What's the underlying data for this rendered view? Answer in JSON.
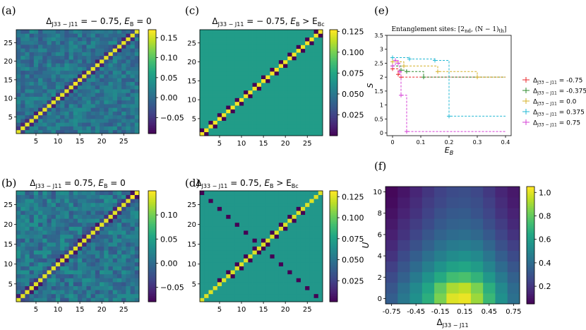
{
  "chart_data": [
    {
      "id": "a",
      "type": "heatmap",
      "panel_label": "(a)",
      "title_main": "Δ",
      "title_sub": "J33 − J11",
      "title_rest": " = − 0.75,  ",
      "title_eb": "E",
      "title_eb_sub": "B",
      "title_cond": " = 0",
      "pattern": "diag-block",
      "matrix_size": 28,
      "diag_value": 0.16,
      "background_value": 0.02,
      "cmin": -0.09,
      "cmax": 0.17,
      "x_ticks": [
        "5",
        "10",
        "15",
        "20",
        "25"
      ],
      "y_ticks": [
        "5",
        "10",
        "15",
        "20",
        "25"
      ],
      "colorbar_ticks": [
        "0.15",
        "0.10",
        "0.05",
        "0.00",
        "−0.05"
      ],
      "colorbar_tick_values": [
        0.15,
        0.1,
        0.05,
        0.0,
        -0.05
      ]
    },
    {
      "id": "b",
      "type": "heatmap",
      "panel_label": "(b)",
      "title_main": "Δ",
      "title_sub": "J33 − J11",
      "title_rest": " = 0.75,  ",
      "title_eb": "E",
      "title_eb_sub": "B",
      "title_cond": " = 0",
      "pattern": "diag-block",
      "matrix_size": 28,
      "diag_value": 0.14,
      "background_value": 0.02,
      "cmin": -0.08,
      "cmax": 0.15,
      "x_ticks": [
        "5",
        "10",
        "15",
        "20",
        "25"
      ],
      "y_ticks": [
        "5",
        "10",
        "15",
        "20",
        "25"
      ],
      "colorbar_ticks": [
        "0.10",
        "0.05",
        "0.00",
        "−0.05"
      ],
      "colorbar_tick_values": [
        0.1,
        0.05,
        0.0,
        -0.05
      ]
    },
    {
      "id": "c",
      "type": "heatmap",
      "panel_label": "(c)",
      "title_main": "Δ",
      "title_sub": "J33 − J11",
      "title_rest": " = − 0.75,  ",
      "title_eb": "E",
      "title_eb_sub": "B",
      "title_cond": " > E",
      "title_cond_sub": "Bc",
      "pattern": "diag-pairs",
      "matrix_size": 28,
      "diag_value": 0.125,
      "background_value": 0.07,
      "pair_value": 0.0,
      "cmin": 0.0,
      "cmax": 0.127,
      "x_ticks": [
        "5",
        "10",
        "15",
        "20",
        "25"
      ],
      "y_ticks": [
        "5",
        "10",
        "15",
        "20",
        "25"
      ],
      "colorbar_ticks": [
        "0.125",
        "0.100",
        "0.075",
        "0.050",
        "0.025"
      ],
      "colorbar_tick_values": [
        0.125,
        0.1,
        0.075,
        0.05,
        0.025
      ]
    },
    {
      "id": "d",
      "type": "heatmap",
      "panel_label": "(d)",
      "title_main": "Δ",
      "title_sub": "J33 − J11",
      "title_rest": " = 0.75,  ",
      "title_eb": "E",
      "title_eb_sub": "B",
      "title_cond": " > E",
      "title_cond_sub": "Bc",
      "pattern": "diag-anti",
      "matrix_size": 28,
      "diag_value": 0.125,
      "background_value": 0.07,
      "pair_value": 0.0,
      "cmin": 0.0,
      "cmax": 0.132,
      "x_ticks": [
        "5",
        "10",
        "15",
        "20",
        "25"
      ],
      "y_ticks": [
        "5",
        "10",
        "15",
        "20",
        "25"
      ],
      "colorbar_ticks": [
        "0.125",
        "0.100",
        "0.075",
        "0.050",
        "0.025"
      ],
      "colorbar_tick_values": [
        0.125,
        0.1,
        0.075,
        0.05,
        0.025
      ]
    },
    {
      "id": "e",
      "type": "line",
      "panel_label": "(e)",
      "title": "Entanglement sites: [2",
      "title_sub1": "nd",
      "title_mid": ", (N − 1)",
      "title_sub2": "th",
      "title_end": "]",
      "xlabel": "E",
      "xlabel_sub": "B",
      "ylabel": "S",
      "xlim": [
        -0.02,
        0.42
      ],
      "ylim": [
        -0.1,
        3.5
      ],
      "x_ticks": [
        "0",
        "0.1",
        "0.2",
        "0.3",
        "0.4"
      ],
      "x_tick_values": [
        0,
        0.1,
        0.2,
        0.3,
        0.4
      ],
      "y_ticks": [
        "0",
        "0.5",
        "1",
        "1.5",
        "2",
        "2.5",
        "3",
        "3.5"
      ],
      "y_tick_values": [
        0,
        0.5,
        1,
        1.5,
        2,
        2.5,
        3,
        3.5
      ],
      "series": [
        {
          "name": "-0.75",
          "color": "#e8262a",
          "x": [
            0,
            0.02,
            0.03,
            0.4
          ],
          "y": [
            2.3,
            2.1,
            2.0,
            2.0
          ]
        },
        {
          "name": "-0.375",
          "color": "#2e8b2e",
          "x": [
            0,
            0.03,
            0.05,
            0.11,
            0.4
          ],
          "y": [
            2.4,
            2.25,
            2.2,
            2.0,
            2.0
          ]
        },
        {
          "name": "0.0",
          "color": "#d4b02a",
          "x": [
            0,
            0.04,
            0.16,
            0.3,
            0.4
          ],
          "y": [
            2.55,
            2.4,
            2.2,
            2.0,
            2.0
          ]
        },
        {
          "name": "0.375",
          "color": "#22b8d4",
          "x": [
            0,
            0.06,
            0.15,
            0.2,
            0.4
          ],
          "y": [
            2.7,
            2.65,
            2.6,
            0.6,
            0.6
          ]
        },
        {
          "name": "0.75",
          "color": "#d63fd6",
          "x": [
            0,
            0.01,
            0.02,
            0.025,
            0.03,
            0.05,
            0.4
          ],
          "y": [
            2.4,
            2.6,
            2.5,
            2.2,
            1.35,
            0.05,
            0.05
          ]
        }
      ],
      "legend_prefix": "Δ",
      "legend_sub": "J33 − J11",
      "legend_labels": [
        "= -0.75",
        "= -0.375",
        "= 0.0",
        "= 0.375",
        "= 0.75"
      ]
    },
    {
      "id": "f",
      "type": "heatmap",
      "panel_label": "(f)",
      "xlabel": "Δ",
      "xlabel_sub": "J33 − J11",
      "ylabel": "U",
      "x_values": [
        -0.75,
        -0.6,
        -0.45,
        -0.3,
        -0.15,
        0.0,
        0.15,
        0.3,
        0.45,
        0.6,
        0.75
      ],
      "y_values": [
        0,
        1,
        2,
        3,
        4,
        5,
        6,
        7,
        8,
        9,
        10
      ],
      "x_ticks": [
        "-0.75",
        "-0.45",
        "-0.15",
        "0.15",
        "0.45",
        "0.75"
      ],
      "x_tick_values": [
        -0.75,
        -0.45,
        -0.15,
        0.15,
        0.45,
        0.75
      ],
      "y_ticks": [
        "0",
        "2",
        "4",
        "6",
        "8",
        "10"
      ],
      "y_tick_values": [
        0,
        2,
        4,
        6,
        8,
        10
      ],
      "cmin": 0.05,
      "cmax": 1.05,
      "colorbar_ticks": [
        "1.0",
        "0.8",
        "0.6",
        "0.4",
        "0.2"
      ],
      "colorbar_tick_values": [
        1.0,
        0.8,
        0.6,
        0.4,
        0.2
      ],
      "values": [
        [
          0.35,
          0.45,
          0.55,
          0.68,
          0.85,
          1.0,
          1.02,
          0.9,
          0.72,
          0.55,
          0.42
        ],
        [
          0.32,
          0.42,
          0.52,
          0.64,
          0.8,
          0.92,
          0.95,
          0.85,
          0.68,
          0.52,
          0.4
        ],
        [
          0.28,
          0.36,
          0.46,
          0.56,
          0.66,
          0.74,
          0.76,
          0.7,
          0.58,
          0.46,
          0.36
        ],
        [
          0.24,
          0.32,
          0.4,
          0.48,
          0.56,
          0.62,
          0.64,
          0.6,
          0.5,
          0.4,
          0.32
        ],
        [
          0.2,
          0.28,
          0.35,
          0.42,
          0.48,
          0.53,
          0.55,
          0.52,
          0.44,
          0.35,
          0.28
        ],
        [
          0.17,
          0.24,
          0.3,
          0.36,
          0.42,
          0.46,
          0.47,
          0.45,
          0.38,
          0.3,
          0.24
        ],
        [
          0.14,
          0.2,
          0.26,
          0.32,
          0.37,
          0.4,
          0.41,
          0.39,
          0.33,
          0.26,
          0.2
        ],
        [
          0.12,
          0.18,
          0.23,
          0.28,
          0.33,
          0.36,
          0.37,
          0.35,
          0.29,
          0.23,
          0.17
        ],
        [
          0.1,
          0.15,
          0.2,
          0.25,
          0.3,
          0.33,
          0.34,
          0.31,
          0.26,
          0.2,
          0.15
        ],
        [
          0.08,
          0.13,
          0.18,
          0.23,
          0.27,
          0.3,
          0.31,
          0.29,
          0.24,
          0.18,
          0.13
        ],
        [
          0.07,
          0.11,
          0.16,
          0.21,
          0.25,
          0.28,
          0.29,
          0.27,
          0.22,
          0.16,
          0.12
        ]
      ]
    }
  ]
}
